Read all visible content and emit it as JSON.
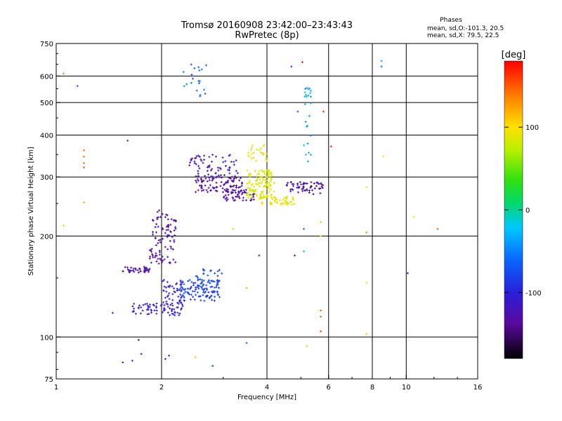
{
  "chart_data": {
    "type": "scatter",
    "title": "Tromsø 20160908 23:42:00–23:43:43",
    "subtitle": "RwPretec (8p)",
    "phase_header": "Phases",
    "phase_stats": [
      "mean, sd,O:-101.3, 20.5",
      "mean, sd,X:  79.5, 22.5"
    ],
    "xlabel": "Frequency [MHz]",
    "ylabel": "Stationary phase Virtual Height [km]",
    "x_scale": "log",
    "y_scale": "log",
    "xlim": [
      1,
      16
    ],
    "ylim": [
      75,
      750
    ],
    "x_ticks": [
      1,
      2,
      4,
      6,
      8,
      10,
      16
    ],
    "x_grid": [
      2,
      4,
      6,
      8,
      10
    ],
    "y_ticks": [
      75,
      100,
      200,
      300,
      400,
      500,
      600,
      750
    ],
    "y_grid": [
      100,
      200,
      300,
      400,
      500,
      600
    ],
    "grid": true,
    "colorbar": {
      "label": "[deg]",
      "range": [
        -180,
        180
      ],
      "ticks": [
        100,
        0,
        -100
      ]
    },
    "clusters": [
      {
        "x": [
          1.55,
          1.85
        ],
        "y": [
          155,
          162
        ],
        "phase": -130,
        "n": 40
      },
      {
        "x": [
          1.85,
          2.2
        ],
        "y": [
          165,
          240
        ],
        "phase": -130,
        "n": 95
      },
      {
        "x": [
          1.65,
          2.3
        ],
        "y": [
          116,
          126
        ],
        "phase": -110,
        "n": 70
      },
      {
        "x": [
          2.0,
          2.3
        ],
        "y": [
          125,
          150
        ],
        "phase": -110,
        "n": 45
      },
      {
        "x": [
          2.25,
          2.95
        ],
        "y": [
          128,
          148
        ],
        "phase": -80,
        "n": 110
      },
      {
        "x": [
          2.5,
          3.0
        ],
        "y": [
          140,
          160
        ],
        "phase": -75,
        "n": 30
      },
      {
        "x": [
          2.4,
          3.3
        ],
        "y": [
          300,
          350
        ],
        "phase": -125,
        "n": 70
      },
      {
        "x": [
          2.5,
          3.4
        ],
        "y": [
          270,
          300
        ],
        "phase": -135,
        "n": 90
      },
      {
        "x": [
          3.0,
          3.7
        ],
        "y": [
          255,
          275
        ],
        "phase": -130,
        "n": 55
      },
      {
        "x": [
          3.5,
          4.2
        ],
        "y": [
          260,
          315
        ],
        "phase": 85,
        "n": 120
      },
      {
        "x": [
          3.8,
          4.8
        ],
        "y": [
          248,
          262
        ],
        "phase": 90,
        "n": 60
      },
      {
        "x": [
          3.5,
          4.0
        ],
        "y": [
          330,
          375
        ],
        "phase": 95,
        "n": 25
      },
      {
        "x": [
          4.5,
          5.2
        ],
        "y": [
          270,
          290
        ],
        "phase": -120,
        "n": 30
      },
      {
        "x": [
          5.0,
          5.8
        ],
        "y": [
          265,
          290
        ],
        "phase": -140,
        "n": 30
      },
      {
        "x": [
          2.3,
          2.7
        ],
        "y": [
          520,
          660
        ],
        "phase": -60,
        "n": 20
      },
      {
        "x": [
          5.1,
          5.35
        ],
        "y": [
          330,
          560
        ],
        "phase": -30,
        "n": 25
      }
    ],
    "scattered_points": [
      {
        "x": 1.2,
        "y": 330,
        "phase": 140
      },
      {
        "x": 1.2,
        "y": 345,
        "phase": 140
      },
      {
        "x": 1.2,
        "y": 360,
        "phase": 140
      },
      {
        "x": 1.2,
        "y": 320,
        "phase": 150
      },
      {
        "x": 1.2,
        "y": 252,
        "phase": 120
      },
      {
        "x": 1.05,
        "y": 215,
        "phase": 80
      },
      {
        "x": 1.05,
        "y": 610,
        "phase": 40
      },
      {
        "x": 1.15,
        "y": 560,
        "phase": -60
      },
      {
        "x": 1.65,
        "y": 85,
        "phase": -110
      },
      {
        "x": 1.75,
        "y": 89,
        "phase": -110
      },
      {
        "x": 1.72,
        "y": 98,
        "phase": -110
      },
      {
        "x": 1.55,
        "y": 84,
        "phase": -120
      },
      {
        "x": 2.05,
        "y": 86,
        "phase": -110
      },
      {
        "x": 2.1,
        "y": 88,
        "phase": -120
      },
      {
        "x": 2.5,
        "y": 87,
        "phase": 110
      },
      {
        "x": 2.8,
        "y": 82,
        "phase": -70
      },
      {
        "x": 3.5,
        "y": 96,
        "phase": -60
      },
      {
        "x": 5.2,
        "y": 94,
        "phase": 110
      },
      {
        "x": 5.7,
        "y": 104,
        "phase": 160
      },
      {
        "x": 5.7,
        "y": 115,
        "phase": 150
      },
      {
        "x": 5.7,
        "y": 120,
        "phase": 140
      },
      {
        "x": 5.7,
        "y": 200,
        "phase": 100
      },
      {
        "x": 5.7,
        "y": 220,
        "phase": 110
      },
      {
        "x": 5.8,
        "y": 470,
        "phase": 170
      },
      {
        "x": 6.1,
        "y": 370,
        "phase": 170
      },
      {
        "x": 5.05,
        "y": 660,
        "phase": 170
      },
      {
        "x": 7.7,
        "y": 102,
        "phase": 110
      },
      {
        "x": 7.7,
        "y": 145,
        "phase": 100
      },
      {
        "x": 7.7,
        "y": 205,
        "phase": 40
      },
      {
        "x": 7.7,
        "y": 280,
        "phase": 100
      },
      {
        "x": 8.5,
        "y": 640,
        "phase": -60
      },
      {
        "x": 8.5,
        "y": 665,
        "phase": -40
      },
      {
        "x": 8.6,
        "y": 345,
        "phase": 100
      },
      {
        "x": 10.5,
        "y": 228,
        "phase": 100
      },
      {
        "x": 12.3,
        "y": 210,
        "phase": 150
      },
      {
        "x": 10.1,
        "y": 155,
        "phase": -110
      },
      {
        "x": 1.6,
        "y": 385,
        "phase": -80
      },
      {
        "x": 1.45,
        "y": 118,
        "phase": -100
      },
      {
        "x": 3.2,
        "y": 210,
        "phase": 110
      },
      {
        "x": 3.8,
        "y": 175,
        "phase": -120
      },
      {
        "x": 4.8,
        "y": 175,
        "phase": -130
      },
      {
        "x": 4.9,
        "y": 470,
        "phase": -70
      },
      {
        "x": 5.1,
        "y": 180,
        "phase": -30
      },
      {
        "x": 5.1,
        "y": 210,
        "phase": -60
      },
      {
        "x": 4.7,
        "y": 640,
        "phase": -90
      },
      {
        "x": 3.5,
        "y": 140,
        "phase": 120
      }
    ]
  }
}
